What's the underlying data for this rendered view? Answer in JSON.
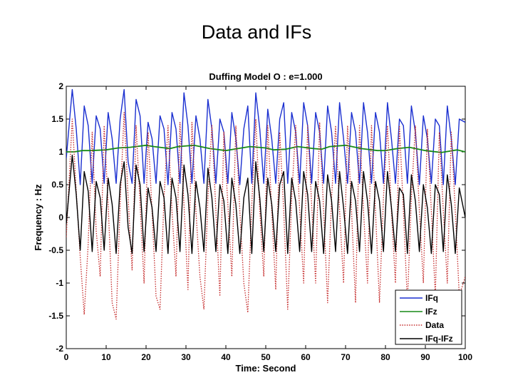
{
  "slide": {
    "title": "Data and IFs"
  },
  "chart_data": {
    "type": "line",
    "title": "Duffing Model O : e=1.000",
    "xlabel": "Time: Second",
    "ylabel": "Frequency : Hz",
    "xlim": [
      0,
      100
    ],
    "ylim": [
      -2,
      2
    ],
    "xticks": [
      0,
      10,
      20,
      30,
      40,
      50,
      60,
      70,
      80,
      90,
      100
    ],
    "yticks": [
      2,
      1.5,
      1,
      0.5,
      0,
      -0.5,
      -1,
      -1.5,
      -2
    ],
    "ytick_labels": [
      "2",
      "1.5",
      "1",
      "0.5",
      "0",
      "-0.5",
      "-1",
      "-1.5",
      "-2"
    ],
    "grid": false,
    "legend_position": "bottom-right",
    "series": [
      {
        "name": "IFq",
        "color": "#1a2fd0",
        "style": "solid",
        "x": [
          0,
          1.5,
          2.5,
          3.5,
          4.5,
          5.5,
          6.5,
          7.5,
          8.5,
          9.5,
          10.5,
          11.5,
          12.5,
          13.5,
          14.5,
          15.5,
          16.5,
          17.5,
          18.5,
          19.5,
          20.5,
          21.5,
          22.5,
          23.5,
          24.5,
          25.5,
          26.5,
          27.5,
          28.5,
          29.5,
          30.5,
          31.5,
          32.5,
          33.5,
          34.5,
          35.5,
          36.5,
          37.5,
          38.5,
          39.5,
          40.5,
          41.5,
          42.5,
          43.5,
          44.5,
          45.5,
          46.5,
          47.5,
          48.5,
          49.5,
          50.5,
          51.5,
          52.5,
          53.5,
          54.5,
          55.5,
          56.5,
          57.5,
          58.5,
          59.5,
          60.5,
          61.5,
          62.5,
          63.5,
          64.5,
          65.5,
          66.5,
          67.5,
          68.5,
          69.5,
          70.5,
          71.5,
          72.5,
          73.5,
          74.5,
          75.5,
          76.5,
          77.5,
          78.5,
          79.5,
          80.5,
          81.5,
          82.5,
          83.5,
          84.5,
          85.5,
          86.5,
          87.5,
          88.5,
          89.5,
          90.5,
          91.5,
          92.5,
          93.5,
          94.5,
          95.5,
          96.5,
          97.5,
          98.5,
          100
        ],
        "y": [
          0.9,
          1.95,
          1.35,
          0.5,
          1.7,
          1.4,
          0.52,
          1.55,
          1.35,
          0.52,
          1.6,
          1.2,
          0.52,
          1.5,
          1.95,
          0.85,
          0.52,
          1.8,
          1.55,
          0.52,
          1.45,
          1.2,
          0.52,
          1.55,
          1.35,
          0.5,
          1.6,
          1.35,
          0.52,
          1.9,
          1.4,
          0.52,
          1.55,
          1.2,
          0.52,
          1.8,
          1.35,
          0.52,
          1.5,
          1.3,
          0.52,
          1.6,
          1.2,
          0.5,
          1.35,
          1.7,
          0.52,
          1.9,
          1.35,
          0.52,
          1.65,
          1.2,
          0.52,
          1.5,
          1.75,
          0.52,
          1.6,
          1.3,
          0.52,
          1.75,
          1.4,
          0.52,
          1.6,
          1.3,
          0.52,
          1.7,
          1.3,
          0.52,
          1.75,
          1.2,
          0.52,
          1.6,
          1.3,
          0.52,
          1.75,
          1.3,
          0.52,
          1.6,
          1.3,
          0.52,
          1.75,
          1.2,
          0.52,
          1.5,
          1.4,
          0.52,
          1.7,
          1.3,
          0.5,
          1.55,
          1.2,
          0.52,
          1.5,
          1.4,
          0.5,
          1.7,
          1.2,
          0.5,
          1.5,
          1.45
        ]
      },
      {
        "name": "IFz",
        "color": "#168a16",
        "style": "solid",
        "x": [
          0,
          2,
          4,
          6,
          10,
          13,
          16,
          20,
          22,
          26,
          28,
          32,
          36,
          40,
          43,
          46,
          50,
          52,
          55,
          58,
          62,
          64,
          66,
          70,
          74,
          78,
          80,
          83,
          86,
          90,
          94,
          98,
          100
        ],
        "y": [
          1.0,
          1.0,
          1.02,
          1.02,
          1.03,
          1.06,
          1.07,
          1.1,
          1.08,
          1.05,
          1.08,
          1.1,
          1.05,
          1.02,
          1.05,
          1.08,
          1.06,
          1.03,
          1.04,
          1.08,
          1.05,
          1.04,
          1.08,
          1.1,
          1.05,
          1.02,
          1.02,
          1.05,
          1.07,
          1.02,
          0.99,
          1.03,
          1.0
        ]
      },
      {
        "name": "Data",
        "color": "#c42a2a",
        "style": "dotted",
        "x": [
          0,
          1.5,
          2.5,
          3.5,
          4.5,
          5.5,
          6.5,
          7.5,
          8.5,
          9.5,
          10.5,
          11.5,
          12.5,
          13.5,
          14.5,
          15.5,
          16.5,
          17.5,
          18.5,
          19.5,
          20.5,
          21.5,
          22.5,
          23.5,
          24.5,
          25.5,
          26.5,
          27.5,
          28.5,
          29.5,
          30.5,
          31.5,
          32.5,
          33.5,
          34.5,
          35.5,
          36.5,
          37.5,
          38.5,
          39.5,
          40.5,
          41.5,
          42.5,
          43.5,
          44.5,
          45.5,
          46.5,
          47.5,
          48.5,
          49.5,
          50.5,
          51.5,
          52.5,
          53.5,
          54.5,
          55.5,
          56.5,
          57.5,
          58.5,
          59.5,
          60.5,
          61.5,
          62.5,
          63.5,
          64.5,
          65.5,
          66.5,
          67.5,
          68.5,
          69.5,
          70.5,
          71.5,
          72.5,
          73.5,
          74.5,
          75.5,
          76.5,
          77.5,
          78.5,
          79.5,
          80.5,
          81.5,
          82.5,
          83.5,
          84.5,
          85.5,
          86.5,
          87.5,
          88.5,
          89.5,
          90.5,
          91.5,
          92.5,
          93.5,
          94.5,
          95.5,
          96.5,
          97.5,
          98.5,
          100
        ],
        "y": [
          -0.3,
          1.5,
          0.4,
          -0.6,
          -1.48,
          -0.4,
          1.3,
          -0.2,
          -0.9,
          1.4,
          0.2,
          -1.3,
          -1.55,
          0.2,
          1.6,
          0.3,
          -0.8,
          1.4,
          0.2,
          -1.0,
          1.3,
          0.1,
          -1.2,
          -1.4,
          0.3,
          1.4,
          0.1,
          -0.9,
          1.45,
          0.2,
          -1.1,
          1.45,
          0.1,
          -0.9,
          -1.4,
          0.3,
          1.4,
          0.1,
          -1.2,
          1.3,
          0.2,
          -0.9,
          1.4,
          0.1,
          -1.0,
          -1.45,
          0.2,
          1.5,
          0.1,
          -0.9,
          1.4,
          0.1,
          -1.1,
          1.3,
          0.1,
          -1.4,
          0.3,
          1.4,
          0.1,
          -1.0,
          1.4,
          0.2,
          -1.0,
          1.45,
          0.1,
          -1.3,
          0.3,
          1.4,
          0.1,
          -1.0,
          1.4,
          0.1,
          -1.3,
          1.4,
          0.1,
          -1.0,
          1.4,
          0.1,
          -1.3,
          0.3,
          1.4,
          0.1,
          -1.0,
          1.4,
          0.1,
          -1.3,
          0.3,
          1.4,
          0.1,
          -1.0,
          1.35,
          0.1,
          -1.2,
          1.3,
          0.1,
          -1.0,
          1.3,
          0.1,
          -1.2,
          -0.9
        ]
      },
      {
        "name": "IFq-IFz",
        "color": "#000000",
        "style": "solid",
        "x": [
          0,
          1.5,
          2.5,
          3.5,
          4.5,
          5.5,
          6.5,
          7.5,
          8.5,
          9.5,
          10.5,
          11.5,
          12.5,
          13.5,
          14.5,
          15.5,
          16.5,
          17.5,
          18.5,
          19.5,
          20.5,
          21.5,
          22.5,
          23.5,
          24.5,
          25.5,
          26.5,
          27.5,
          28.5,
          29.5,
          30.5,
          31.5,
          32.5,
          33.5,
          34.5,
          35.5,
          36.5,
          37.5,
          38.5,
          39.5,
          40.5,
          41.5,
          42.5,
          43.5,
          44.5,
          45.5,
          46.5,
          47.5,
          48.5,
          49.5,
          50.5,
          51.5,
          52.5,
          53.5,
          54.5,
          55.5,
          56.5,
          57.5,
          58.5,
          59.5,
          60.5,
          61.5,
          62.5,
          63.5,
          64.5,
          65.5,
          66.5,
          67.5,
          68.5,
          69.5,
          70.5,
          71.5,
          72.5,
          73.5,
          74.5,
          75.5,
          76.5,
          77.5,
          78.5,
          79.5,
          80.5,
          81.5,
          82.5,
          83.5,
          84.5,
          85.5,
          86.5,
          87.5,
          88.5,
          89.5,
          90.5,
          91.5,
          92.5,
          93.5,
          94.5,
          95.5,
          96.5,
          97.5,
          98.5,
          100
        ],
        "y": [
          -0.1,
          0.95,
          0.35,
          -0.5,
          0.7,
          0.4,
          -0.52,
          0.55,
          0.3,
          -0.5,
          0.6,
          0.2,
          -0.55,
          0.5,
          0.85,
          -0.15,
          -0.55,
          0.8,
          0.5,
          -0.52,
          0.45,
          0.15,
          -0.52,
          0.55,
          0.3,
          -0.55,
          0.6,
          0.3,
          -0.52,
          0.8,
          0.35,
          -0.55,
          0.55,
          0.15,
          -0.52,
          0.75,
          0.3,
          -0.52,
          0.5,
          0.25,
          -0.55,
          0.6,
          0.2,
          -0.55,
          0.3,
          0.6,
          -0.55,
          0.85,
          0.3,
          -0.52,
          0.6,
          0.2,
          -0.52,
          0.5,
          0.7,
          -0.55,
          0.6,
          0.25,
          -0.52,
          0.7,
          0.35,
          -0.52,
          0.55,
          0.25,
          -0.55,
          0.65,
          0.25,
          -0.52,
          0.7,
          0.15,
          -0.55,
          0.55,
          0.25,
          -0.52,
          0.7,
          0.25,
          -0.55,
          0.55,
          0.25,
          -0.52,
          0.7,
          0.15,
          -0.52,
          0.45,
          0.35,
          -0.55,
          0.65,
          0.25,
          -0.52,
          0.5,
          0.15,
          -0.55,
          0.5,
          0.35,
          -0.52,
          0.65,
          0.2,
          -0.55,
          0.45,
          0.0
        ]
      }
    ]
  }
}
